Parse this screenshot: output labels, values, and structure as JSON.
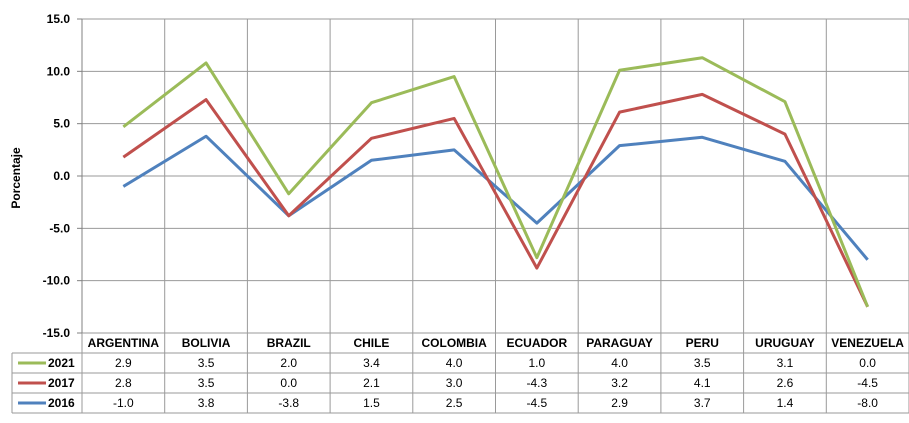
{
  "chart_data": {
    "type": "line",
    "ylabel": "Porcentaje",
    "ylim": [
      -15,
      15
    ],
    "yticks": [
      "15.0",
      "10.0",
      "5.0",
      "0.0",
      "-5.0",
      "-10.0",
      "-15.0"
    ],
    "ytick_values": [
      15,
      10,
      5,
      0,
      -5,
      -10,
      -15
    ],
    "grid": true,
    "legend": "data table below chart",
    "categories": [
      "ARGENTINA",
      "BOLIVIA",
      "BRAZIL",
      "CHILE",
      "COLOMBIA",
      "ECUADOR",
      "PARAGUAY",
      "PERU",
      "URUGUAY",
      "VENEZUELA"
    ],
    "series": [
      {
        "name": "2021",
        "color": "#9bbb59",
        "values": [
          4.7,
          10.8,
          -1.7,
          7.0,
          9.5,
          -7.8,
          10.1,
          11.3,
          7.1,
          -12.5
        ],
        "table": [
          "2.9",
          "3.5",
          "2.0",
          "3.4",
          "4.0",
          "1.0",
          "4.0",
          "3.5",
          "3.1",
          "0.0"
        ]
      },
      {
        "name": "2017",
        "color": "#c0504d",
        "values": [
          1.8,
          7.3,
          -3.8,
          3.6,
          5.5,
          -8.8,
          6.1,
          7.8,
          4.0,
          -12.5
        ],
        "table": [
          "2.8",
          "3.5",
          "0.0",
          "2.1",
          "3.0",
          "-4.3",
          "3.2",
          "4.1",
          "2.6",
          "-4.5"
        ]
      },
      {
        "name": "2016",
        "color": "#4f81bd",
        "values": [
          -1.0,
          3.8,
          -3.8,
          1.5,
          2.5,
          -4.5,
          2.9,
          3.7,
          1.4,
          -8.0
        ],
        "table": [
          "-1.0",
          "3.8",
          "-3.8",
          "1.5",
          "2.5",
          "-4.5",
          "2.9",
          "3.7",
          "1.4",
          "-8.0"
        ]
      }
    ]
  }
}
